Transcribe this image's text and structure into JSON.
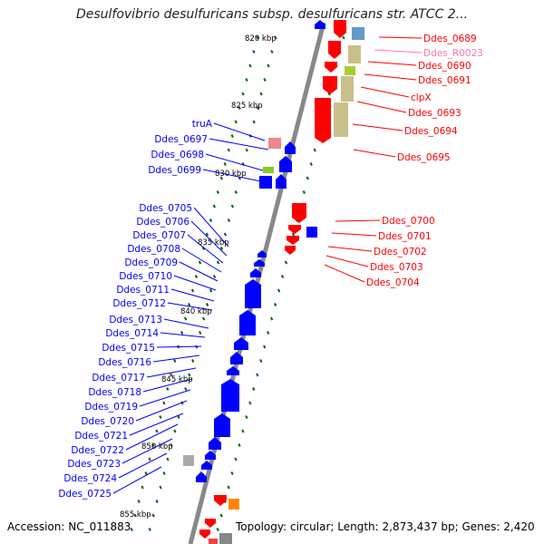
{
  "title": "Desulfovibrio desulfuricans subsp. desulfuricans str. ATCC 2...",
  "footer": {
    "accession": "Accession: NC_011883",
    "topology": "Topology: circular; Length: 2,873,437 bp; Genes: 2,420"
  },
  "colors": {
    "forward": "#ff0000",
    "reverse": "#0000ff",
    "rna": "#ff77aa",
    "backbone": "#888888",
    "tick": "#006600"
  },
  "kbp_labels": [
    "820 kbp",
    "825 kbp",
    "830 kbp",
    "835 kbp",
    "840 kbp",
    "845 kbp",
    "850 kbp",
    "855 kbp"
  ],
  "right_labels": [
    {
      "text": "Ddes_0689",
      "kind": "forward"
    },
    {
      "text": "Ddes_R0023",
      "kind": "rna"
    },
    {
      "text": "Ddes_0690",
      "kind": "forward"
    },
    {
      "text": "Ddes_0691",
      "kind": "forward"
    },
    {
      "text": "clpX",
      "kind": "forward"
    },
    {
      "text": "Ddes_0693",
      "kind": "forward"
    },
    {
      "text": "Ddes_0694",
      "kind": "forward"
    },
    {
      "text": "Ddes_0695",
      "kind": "forward"
    },
    {
      "text": "Ddes_0700",
      "kind": "forward"
    },
    {
      "text": "Ddes_0701",
      "kind": "forward"
    },
    {
      "text": "Ddes_0702",
      "kind": "forward"
    },
    {
      "text": "Ddes_0703",
      "kind": "forward"
    },
    {
      "text": "Ddes_0704",
      "kind": "forward"
    }
  ],
  "left_labels": [
    "truA",
    "Ddes_0697",
    "Ddes_0698",
    "Ddes_0699",
    "Ddes_0705",
    "Ddes_0706",
    "Ddes_0707",
    "Ddes_0708",
    "Ddes_0709",
    "Ddes_0710",
    "Ddes_0711",
    "Ddes_0712",
    "Ddes_0713",
    "Ddes_0714",
    "Ddes_0715",
    "Ddes_0716",
    "Ddes_0717",
    "Ddes_0718",
    "Ddes_0719",
    "Ddes_0720",
    "Ddes_0721",
    "Ddes_0722",
    "Ddes_0723",
    "Ddes_0724",
    "Ddes_0725"
  ]
}
